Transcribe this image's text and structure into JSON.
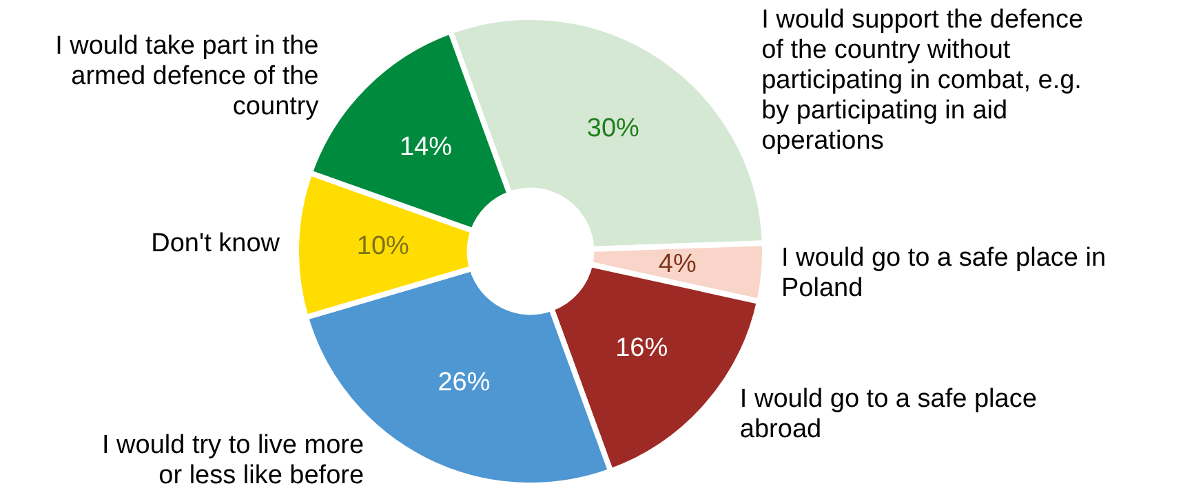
{
  "chart_data": {
    "type": "donut",
    "categories": [
      "I would support the defence of the country without participating in combat, e.g. by participating in aid operations",
      "I would go to a safe place in Poland",
      "I would go to a safe place abroad",
      "I would try to live more or less like before",
      "Don't know",
      "I would take part in the armed defence of the country"
    ],
    "values": [
      30,
      4,
      16,
      26,
      10,
      14
    ],
    "colors": [
      "#d5e8d4",
      "#f8d5c8",
      "#9e2a25",
      "#4f97d3",
      "#ffdd00",
      "#008a3e"
    ],
    "value_labels": [
      "30%",
      "4%",
      "16%",
      "26%",
      "10%",
      "14%"
    ],
    "legend": false
  }
}
